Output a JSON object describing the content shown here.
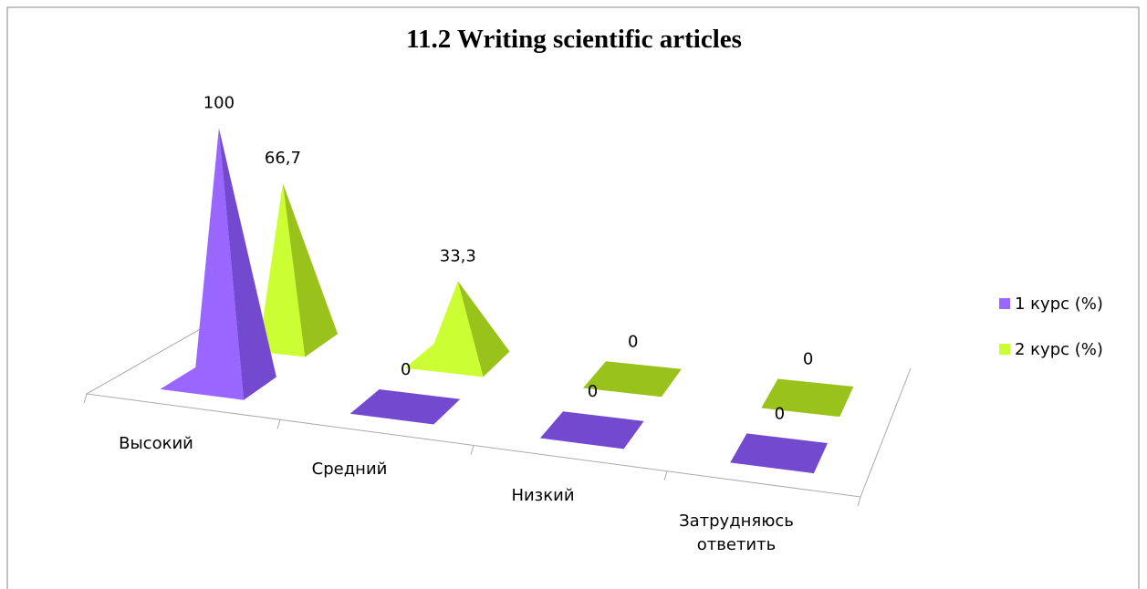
{
  "chart_data": {
    "type": "pyramid3d",
    "title": "11.2 Writing scientific articles",
    "categories": [
      "Высокий",
      "Средний",
      "Низкий",
      "Затрудняюсь ответить"
    ],
    "series": [
      {
        "name": "1 курс (%)",
        "color": "#9966ff",
        "values": [
          100,
          0,
          0,
          0
        ],
        "value_labels": [
          "100",
          "0",
          "0",
          "0"
        ]
      },
      {
        "name": "2 курс (%)",
        "color": "#ccff33",
        "values": [
          66.7,
          33.3,
          0,
          0
        ],
        "value_labels": [
          "66,7",
          "33,3",
          "0",
          "0"
        ]
      }
    ],
    "legend": "right"
  }
}
